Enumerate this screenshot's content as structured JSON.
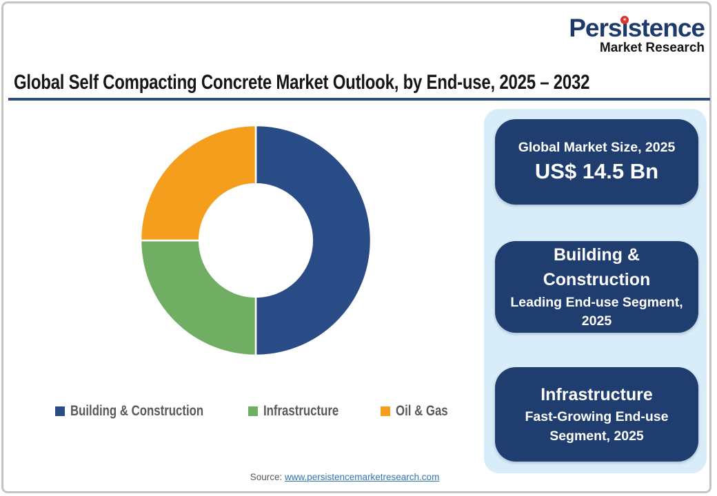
{
  "brand": {
    "part1": "Pers",
    "part2": "i",
    "part3": "stence",
    "star_glyph": "✶",
    "subtitle": "Market Research"
  },
  "title": "Global Self Compacting Concrete Market Outlook, by End-use, 2025 – 2032",
  "chart_data": {
    "type": "pie",
    "subtype": "donut",
    "title": "Global Self Compacting Concrete Market Outlook, by End-use, 2025 – 2032",
    "categories": [
      "Building & Construction",
      "Infrastructure",
      "Oil & Gas"
    ],
    "values": [
      50,
      25,
      25
    ],
    "unit": "% share, estimated from arc angles (no numeric labels shown)",
    "segment_colors": [
      "#2a4c86",
      "#6fae63",
      "#f59e1d"
    ],
    "inner_radius_ratio": 0.49,
    "start_angle_deg": 0,
    "direction": "clockwise",
    "legend_position": "bottom"
  },
  "panel": {
    "cards": [
      {
        "heading": "Global Market Size, 2025",
        "value": "US$ 14.5 Bn"
      },
      {
        "heading": "Building & Construction",
        "subheading": "Leading End-use Segment, 2025"
      },
      {
        "heading": "Infrastructure",
        "subheading": "Fast-Growing End-use Segment, 2025"
      }
    ]
  },
  "source": {
    "label": "Source:",
    "link": "www.persistencemarketresearch.com"
  },
  "colors": {
    "page_bg": "#ffffff",
    "border_gray": "#c4c4c4",
    "title_text": "#161616",
    "rule": "#2e4d7e",
    "navy_box": "#1f3d6f",
    "panel_bg": "#d9ecf9",
    "card_text": "#ffffff",
    "legend_text": "#595959",
    "source_text": "#595959",
    "link": "#2e75b6",
    "logo_blue": "#1e3a6d",
    "logo_dark": "#15151a",
    "logo_red": "#da342c"
  }
}
